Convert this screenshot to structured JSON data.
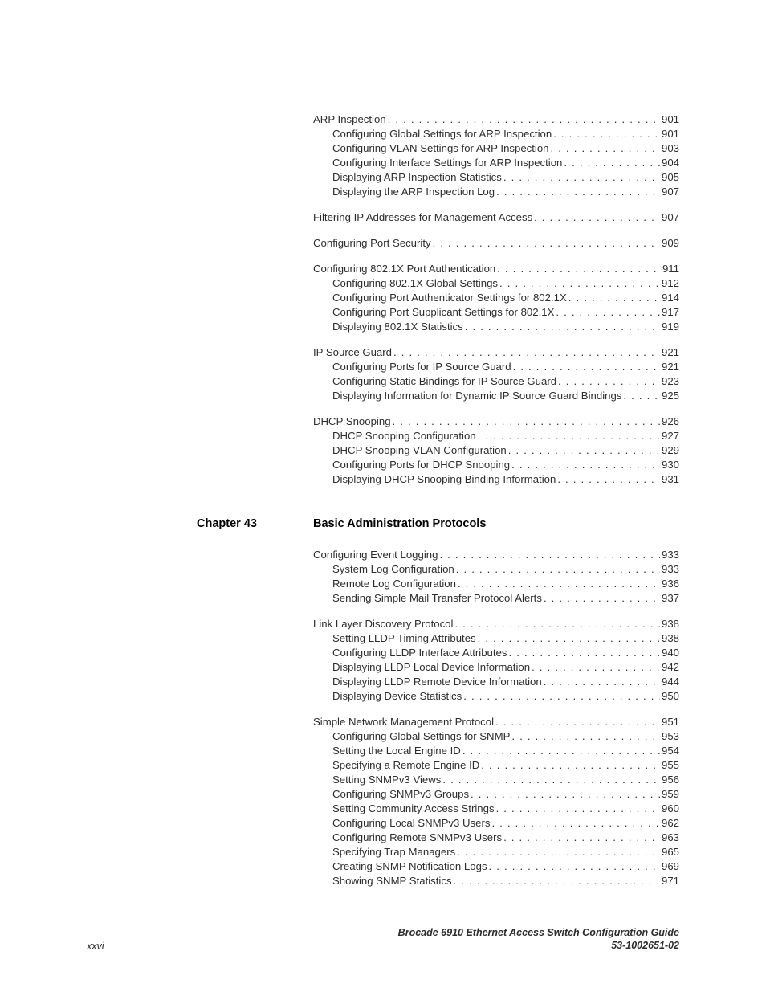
{
  "groups_before": [
    {
      "entries": [
        {
          "text": "ARP Inspection",
          "page": "901",
          "indent": 0
        },
        {
          "text": "Configuring Global Settings for ARP Inspection",
          "page": "901",
          "indent": 1
        },
        {
          "text": "Configuring VLAN Settings for ARP Inspection",
          "page": "903",
          "indent": 1
        },
        {
          "text": "Configuring Interface Settings for ARP Inspection",
          "page": "904",
          "indent": 1
        },
        {
          "text": "Displaying ARP Inspection Statistics",
          "page": "905",
          "indent": 1
        },
        {
          "text": "Displaying the ARP Inspection Log",
          "page": "907",
          "indent": 1
        }
      ]
    },
    {
      "entries": [
        {
          "text": "Filtering IP Addresses for Management Access",
          "page": "907",
          "indent": 0
        }
      ]
    },
    {
      "entries": [
        {
          "text": "Configuring Port Security",
          "page": "909",
          "indent": 0
        }
      ]
    },
    {
      "entries": [
        {
          "text": "Configuring 802.1X Port Authentication",
          "page": "911",
          "indent": 0
        },
        {
          "text": "Configuring 802.1X Global Settings",
          "page": "912",
          "indent": 1
        },
        {
          "text": "Configuring Port Authenticator Settings for 802.1X",
          "page": "914",
          "indent": 1
        },
        {
          "text": "Configuring Port Supplicant Settings for 802.1X",
          "page": "917",
          "indent": 1
        },
        {
          "text": "Displaying 802.1X Statistics",
          "page": "919",
          "indent": 1
        }
      ]
    },
    {
      "entries": [
        {
          "text": "IP Source Guard",
          "page": "921",
          "indent": 0
        },
        {
          "text": "Configuring Ports for IP Source Guard",
          "page": "921",
          "indent": 1
        },
        {
          "text": "Configuring Static Bindings for IP Source Guard",
          "page": "923",
          "indent": 1
        },
        {
          "text": "Displaying Information for Dynamic IP Source Guard Bindings",
          "page": "925",
          "indent": 1
        }
      ]
    },
    {
      "entries": [
        {
          "text": "DHCP Snooping",
          "page": "926",
          "indent": 0
        },
        {
          "text": "DHCP Snooping Configuration",
          "page": "927",
          "indent": 1
        },
        {
          "text": "DHCP Snooping VLAN Configuration",
          "page": "929",
          "indent": 1
        },
        {
          "text": "Configuring Ports for DHCP Snooping",
          "page": "930",
          "indent": 1
        },
        {
          "text": "Displaying DHCP Snooping Binding Information",
          "page": "931",
          "indent": 1
        }
      ]
    }
  ],
  "chapter": {
    "label": "Chapter 43",
    "title": "Basic Administration Protocols"
  },
  "groups_after": [
    {
      "entries": [
        {
          "text": "Configuring Event Logging",
          "page": "933",
          "indent": 0
        },
        {
          "text": "System Log Configuration",
          "page": "933",
          "indent": 1
        },
        {
          "text": "Remote Log Configuration",
          "page": "936",
          "indent": 1
        },
        {
          "text": "Sending Simple Mail Transfer Protocol Alerts",
          "page": "937",
          "indent": 1
        }
      ]
    },
    {
      "entries": [
        {
          "text": "Link Layer Discovery Protocol",
          "page": "938",
          "indent": 0
        },
        {
          "text": "Setting LLDP Timing Attributes",
          "page": "938",
          "indent": 1
        },
        {
          "text": "Configuring LLDP Interface Attributes",
          "page": "940",
          "indent": 1
        },
        {
          "text": "Displaying LLDP Local Device Information",
          "page": "942",
          "indent": 1
        },
        {
          "text": "Displaying LLDP Remote Device Information",
          "page": "944",
          "indent": 1
        },
        {
          "text": "Displaying Device Statistics",
          "page": "950",
          "indent": 1
        }
      ]
    },
    {
      "entries": [
        {
          "text": "Simple Network Management Protocol",
          "page": "951",
          "indent": 0
        },
        {
          "text": "Configuring Global Settings for SNMP",
          "page": "953",
          "indent": 1
        },
        {
          "text": "Setting the Local Engine ID",
          "page": "954",
          "indent": 1
        },
        {
          "text": "Specifying a Remote Engine ID",
          "page": "955",
          "indent": 1
        },
        {
          "text": "Setting SNMPv3 Views",
          "page": "956",
          "indent": 1
        },
        {
          "text": "Configuring SNMPv3 Groups",
          "page": "959",
          "indent": 1
        },
        {
          "text": "Setting Community Access Strings",
          "page": "960",
          "indent": 1
        },
        {
          "text": "Configuring Local SNMPv3 Users",
          "page": "962",
          "indent": 1
        },
        {
          "text": "Configuring Remote SNMPv3 Users",
          "page": "963",
          "indent": 1
        },
        {
          "text": "Specifying Trap Managers",
          "page": "965",
          "indent": 1
        },
        {
          "text": "Creating SNMP Notification Logs",
          "page": "969",
          "indent": 1
        },
        {
          "text": "Showing SNMP Statistics",
          "page": "971",
          "indent": 1
        }
      ]
    }
  ],
  "footer": {
    "page_num": "xxvi",
    "doc_title": "Brocade 6910 Ethernet Access Switch Configuration Guide",
    "doc_num": "53-1002651-02"
  }
}
